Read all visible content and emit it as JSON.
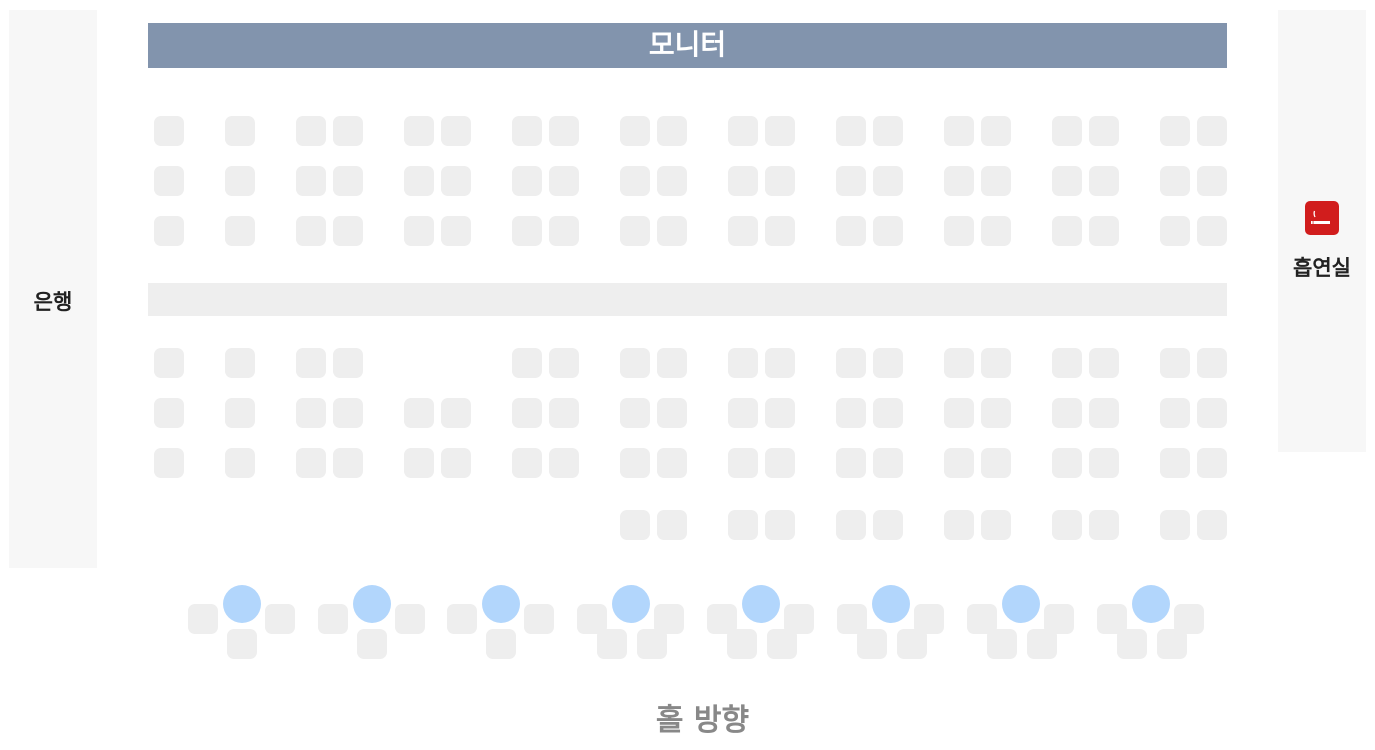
{
  "monitor": {
    "label": "모니터"
  },
  "bank": {
    "label": "은행"
  },
  "smoking_room": {
    "label": "흡연실",
    "icon": "smoking-icon",
    "icon_color": "#d11d1d"
  },
  "hall": {
    "label": "홀 방향"
  },
  "colors": {
    "monitor_bg": "#8294ad",
    "seat": "#eeeeee",
    "table": "#b2d6fc",
    "panel": "#f7f7f7"
  }
}
